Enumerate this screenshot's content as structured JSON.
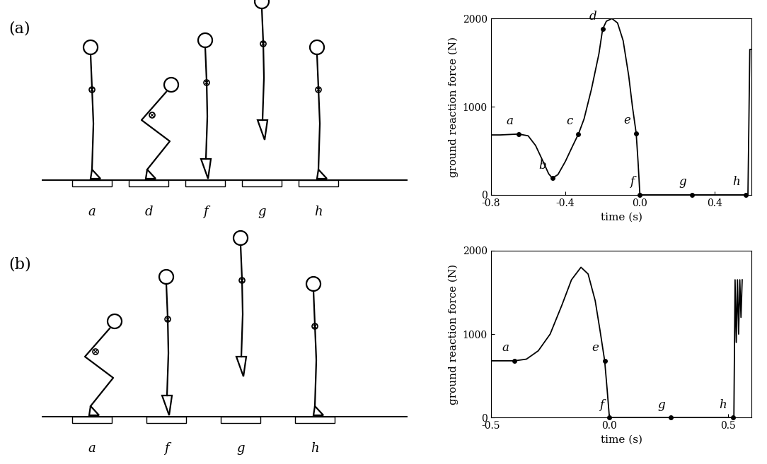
{
  "diagram": {
    "panels": [
      {
        "label": "(a)",
        "frames": [
          "a",
          "d",
          "f",
          "g",
          "h"
        ]
      },
      {
        "label": "(b)",
        "frames": [
          "a",
          "f",
          "g",
          "h"
        ]
      }
    ]
  },
  "chart_data": [
    {
      "type": "line",
      "color": "#000000",
      "grid": false,
      "xlabel": "time (s)",
      "ylabel": "ground reaction force (N)",
      "x": [
        -0.8,
        -0.75,
        -0.7,
        -0.65,
        -0.6,
        -0.56,
        -0.52,
        -0.49,
        -0.47,
        -0.44,
        -0.4,
        -0.36,
        -0.33,
        -0.3,
        -0.26,
        -0.22,
        -0.2,
        -0.18,
        -0.15,
        -0.12,
        -0.09,
        -0.06,
        -0.04,
        -0.02,
        -0.01,
        0.0,
        0.1,
        0.2,
        0.3,
        0.4,
        0.5,
        0.58,
        0.585,
        0.59,
        0.6
      ],
      "values": [
        680,
        680,
        685,
        690,
        670,
        560,
        380,
        240,
        190,
        230,
        380,
        560,
        690,
        860,
        1200,
        1600,
        1880,
        1970,
        2000,
        1950,
        1750,
        1350,
        1000,
        700,
        380,
        0,
        0,
        0,
        0,
        0,
        0,
        0,
        800,
        1650,
        1650
      ],
      "xlim": [
        -0.8,
        0.6
      ],
      "ylim": [
        0,
        2000
      ],
      "xticks": [
        -0.8,
        -0.4,
        0.0,
        0.4
      ],
      "yticks": [
        0,
        1000,
        2000
      ],
      "annotations": [
        {
          "label": "a",
          "x": -0.65,
          "y": 690
        },
        {
          "label": "b",
          "x": -0.47,
          "y": 190
        },
        {
          "label": "c",
          "x": -0.33,
          "y": 690
        },
        {
          "label": "d",
          "x": -0.2,
          "y": 1880
        },
        {
          "label": "e",
          "x": -0.02,
          "y": 700
        },
        {
          "label": "f",
          "x": 0.0,
          "y": 0
        },
        {
          "label": "g",
          "x": 0.28,
          "y": 0
        },
        {
          "label": "h",
          "x": 0.57,
          "y": 0
        }
      ]
    },
    {
      "type": "line",
      "color": "#000000",
      "grid": false,
      "xlabel": "time (s)",
      "ylabel": "ground reaction force (N)",
      "x": [
        -0.5,
        -0.45,
        -0.4,
        -0.35,
        -0.3,
        -0.25,
        -0.2,
        -0.16,
        -0.12,
        -0.09,
        -0.06,
        -0.04,
        -0.02,
        -0.01,
        0.0,
        0.1,
        0.2,
        0.3,
        0.4,
        0.5,
        0.525,
        0.53,
        0.535,
        0.54,
        0.545,
        0.55,
        0.555,
        0.56
      ],
      "values": [
        680,
        680,
        680,
        700,
        800,
        1000,
        1350,
        1650,
        1800,
        1720,
        1400,
        1050,
        680,
        350,
        0,
        0,
        0,
        0,
        0,
        0,
        0,
        1650,
        900,
        1650,
        1000,
        1650,
        1200,
        1650
      ],
      "xlim": [
        -0.5,
        0.6
      ],
      "ylim": [
        0,
        2000
      ],
      "xticks": [
        -0.5,
        0.0,
        0.5
      ],
      "yticks": [
        0,
        1000,
        2000
      ],
      "annotations": [
        {
          "label": "a",
          "x": -0.4,
          "y": 680
        },
        {
          "label": "e",
          "x": -0.02,
          "y": 680
        },
        {
          "label": "f",
          "x": 0.0,
          "y": 0
        },
        {
          "label": "g",
          "x": 0.26,
          "y": 0
        },
        {
          "label": "h",
          "x": 0.52,
          "y": 0
        }
      ]
    }
  ]
}
